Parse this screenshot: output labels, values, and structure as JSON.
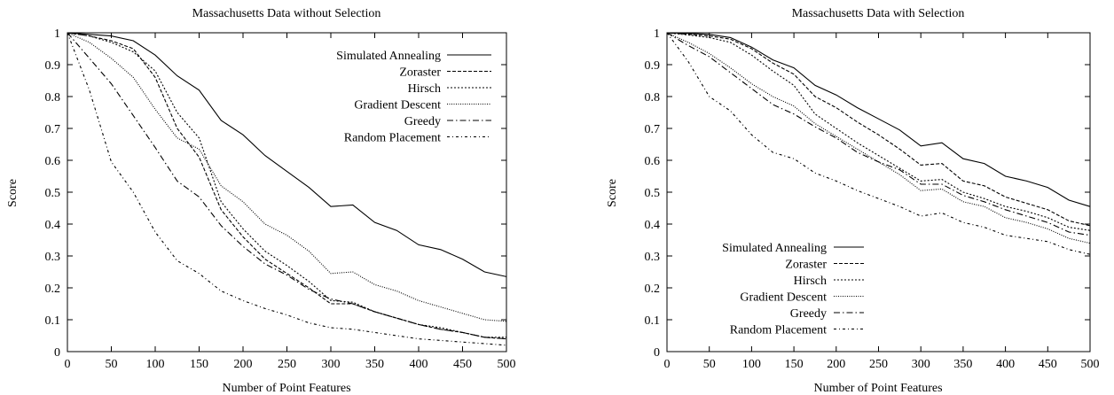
{
  "chart_data": [
    {
      "type": "line",
      "title": "Massachusetts Data without Selection",
      "xlabel": "Number of Point Features",
      "ylabel": "Score",
      "xlim": [
        0,
        500
      ],
      "ylim": [
        0,
        1
      ],
      "grid": false,
      "legend_position": "top-right",
      "x": [
        0,
        25,
        50,
        75,
        100,
        125,
        150,
        175,
        200,
        225,
        250,
        275,
        300,
        325,
        350,
        375,
        400,
        425,
        450,
        475,
        500
      ],
      "series": [
        {
          "name": "Simulated Annealing",
          "values": [
            1.0,
            0.995,
            0.99,
            0.975,
            0.93,
            0.865,
            0.82,
            0.725,
            0.68,
            0.615,
            0.565,
            0.515,
            0.455,
            0.46,
            0.405,
            0.38,
            0.335,
            0.32,
            0.29,
            0.25,
            0.235
          ]
        },
        {
          "name": "Zoraster",
          "values": [
            1.0,
            0.99,
            0.975,
            0.95,
            0.86,
            0.7,
            0.61,
            0.445,
            0.36,
            0.29,
            0.245,
            0.2,
            0.15,
            0.15,
            0.125,
            0.105,
            0.085,
            0.07,
            0.06,
            0.045,
            0.04
          ]
        },
        {
          "name": "Hirsch",
          "values": [
            1.0,
            0.99,
            0.97,
            0.94,
            0.88,
            0.75,
            0.67,
            0.47,
            0.385,
            0.315,
            0.27,
            0.22,
            0.16,
            0.155,
            0.125,
            0.105,
            0.085,
            0.075,
            0.06,
            0.045,
            0.045
          ]
        },
        {
          "name": "Gradient Descent",
          "values": [
            1.0,
            0.97,
            0.92,
            0.86,
            0.76,
            0.67,
            0.635,
            0.52,
            0.47,
            0.4,
            0.365,
            0.315,
            0.245,
            0.25,
            0.21,
            0.19,
            0.16,
            0.14,
            0.12,
            0.1,
            0.095
          ]
        },
        {
          "name": "Greedy",
          "values": [
            1.0,
            0.92,
            0.84,
            0.74,
            0.64,
            0.535,
            0.485,
            0.395,
            0.33,
            0.275,
            0.24,
            0.195,
            0.165,
            0.15,
            0.125,
            0.105,
            0.085,
            0.07,
            0.06,
            0.045,
            0.04
          ]
        },
        {
          "name": "Random Placement",
          "values": [
            1.0,
            0.82,
            0.595,
            0.5,
            0.375,
            0.285,
            0.245,
            0.19,
            0.16,
            0.135,
            0.115,
            0.09,
            0.075,
            0.07,
            0.06,
            0.05,
            0.04,
            0.035,
            0.03,
            0.025,
            0.02
          ]
        }
      ]
    },
    {
      "type": "line",
      "title": "Massachusetts Data with Selection",
      "xlabel": "Number of Point Features",
      "ylabel": "Score",
      "xlim": [
        0,
        500
      ],
      "ylim": [
        0,
        1
      ],
      "grid": false,
      "legend_position": "bottom-left",
      "x": [
        0,
        25,
        50,
        75,
        100,
        125,
        150,
        175,
        200,
        225,
        250,
        275,
        300,
        325,
        350,
        375,
        400,
        425,
        450,
        475,
        500
      ],
      "series": [
        {
          "name": "Simulated Annealing",
          "values": [
            1.0,
            0.998,
            0.995,
            0.985,
            0.955,
            0.915,
            0.89,
            0.835,
            0.805,
            0.765,
            0.73,
            0.695,
            0.645,
            0.655,
            0.605,
            0.59,
            0.55,
            0.535,
            0.515,
            0.475,
            0.455
          ]
        },
        {
          "name": "Zoraster",
          "values": [
            1.0,
            0.995,
            0.99,
            0.98,
            0.95,
            0.905,
            0.87,
            0.8,
            0.765,
            0.72,
            0.68,
            0.635,
            0.585,
            0.59,
            0.535,
            0.52,
            0.485,
            0.465,
            0.445,
            0.41,
            0.395
          ]
        },
        {
          "name": "Hirsch",
          "values": [
            1.0,
            0.993,
            0.985,
            0.97,
            0.93,
            0.88,
            0.835,
            0.745,
            0.7,
            0.655,
            0.615,
            0.575,
            0.535,
            0.54,
            0.5,
            0.48,
            0.455,
            0.44,
            0.42,
            0.39,
            0.38
          ]
        },
        {
          "name": "Gradient Descent",
          "values": [
            1.0,
            0.97,
            0.935,
            0.89,
            0.84,
            0.8,
            0.77,
            0.715,
            0.675,
            0.635,
            0.595,
            0.555,
            0.505,
            0.51,
            0.47,
            0.455,
            0.42,
            0.405,
            0.385,
            0.355,
            0.34
          ]
        },
        {
          "name": "Greedy",
          "values": [
            1.0,
            0.96,
            0.925,
            0.875,
            0.825,
            0.775,
            0.745,
            0.705,
            0.67,
            0.625,
            0.595,
            0.57,
            0.525,
            0.525,
            0.49,
            0.47,
            0.445,
            0.425,
            0.405,
            0.375,
            0.365
          ]
        },
        {
          "name": "Random Placement",
          "values": [
            1.0,
            0.91,
            0.8,
            0.755,
            0.68,
            0.625,
            0.605,
            0.56,
            0.535,
            0.505,
            0.48,
            0.455,
            0.425,
            0.435,
            0.405,
            0.39,
            0.365,
            0.355,
            0.345,
            0.32,
            0.305
          ]
        }
      ]
    }
  ],
  "styles": {
    "line_color": "#000000",
    "series_dash": [
      "",
      "4,2",
      "2,2",
      "1,1.5",
      "7,3,1.5,3",
      "3,3,1,3"
    ]
  }
}
